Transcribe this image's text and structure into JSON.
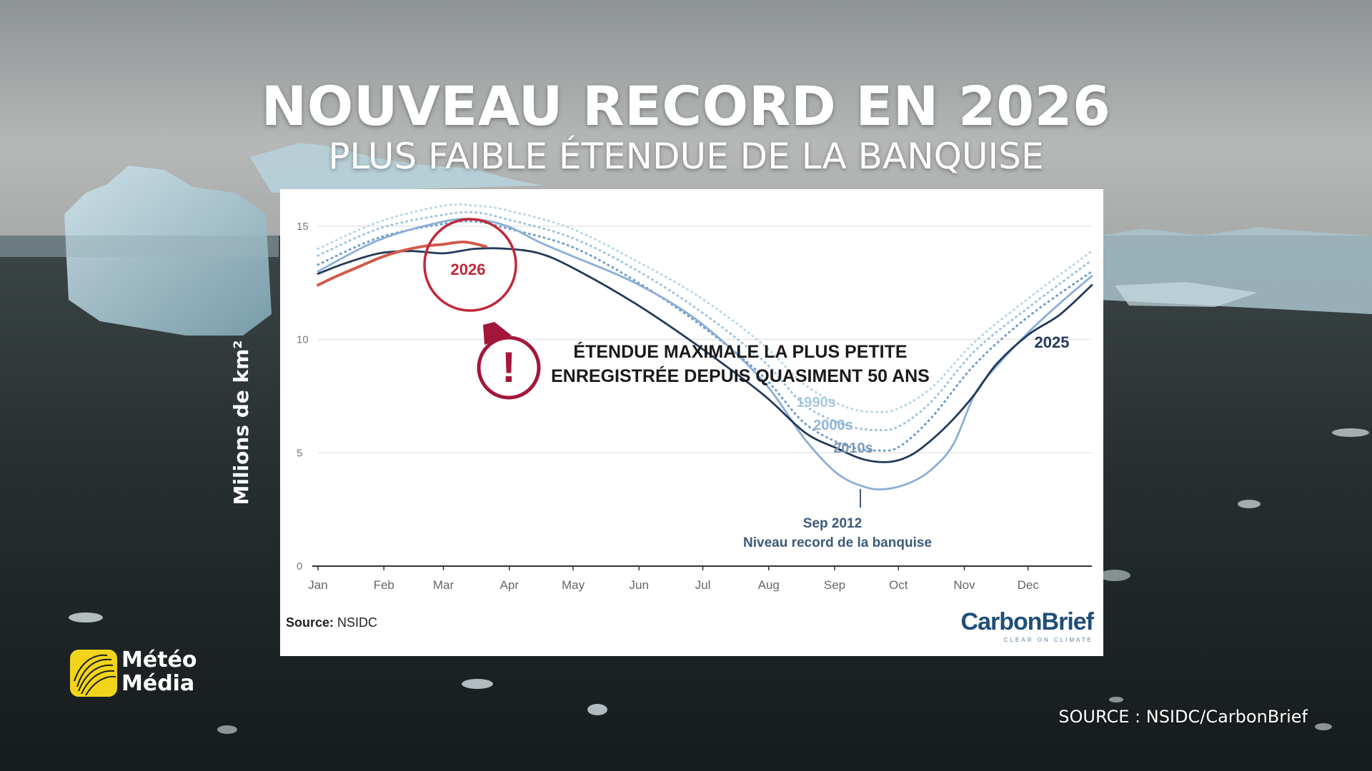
{
  "header": {
    "title": "NOUVEAU RECORD EN 2026",
    "subtitle": "PLUS FAIBLE ÉTENDUE DE LA BANQUISE"
  },
  "chart_data": {
    "type": "line",
    "ylabel": "Milions de km²",
    "ylim": [
      0,
      16
    ],
    "yticks": [
      0,
      5,
      10,
      15
    ],
    "xticks": [
      "Jan",
      "Feb",
      "Mar",
      "Apr",
      "May",
      "Jun",
      "Jul",
      "Aug",
      "Sep",
      "Oct",
      "Nov",
      "Dec"
    ],
    "x_units": "day of year",
    "grid": true,
    "series": [
      {
        "name": "1990s",
        "style": "dotted",
        "color": "#b7d7ea",
        "x": [
          1,
          30,
          60,
          75,
          90,
          120,
          150,
          180,
          210,
          230,
          250,
          265,
          275,
          290,
          310,
          335,
          365
        ],
        "y": [
          14.0,
          15.2,
          15.9,
          15.9,
          15.7,
          14.9,
          13.5,
          11.9,
          9.8,
          8.0,
          7.0,
          6.8,
          7.0,
          7.9,
          9.9,
          11.8,
          13.9
        ]
      },
      {
        "name": "2000s",
        "style": "dotted",
        "color": "#9cc3df",
        "x": [
          1,
          30,
          60,
          75,
          90,
          120,
          150,
          180,
          210,
          230,
          250,
          265,
          275,
          290,
          310,
          335,
          365
        ],
        "y": [
          13.7,
          14.9,
          15.5,
          15.6,
          15.3,
          14.5,
          13.1,
          11.3,
          9.1,
          7.1,
          6.2,
          6.0,
          6.2,
          7.3,
          9.5,
          11.4,
          13.5
        ]
      },
      {
        "name": "2010s",
        "style": "dotted",
        "color": "#6f9bcb",
        "x": [
          1,
          30,
          60,
          75,
          90,
          120,
          150,
          180,
          210,
          230,
          250,
          265,
          275,
          290,
          310,
          335,
          365
        ],
        "y": [
          13.3,
          14.5,
          15.1,
          15.2,
          14.9,
          14.1,
          12.6,
          10.7,
          8.4,
          6.3,
          5.3,
          5.1,
          5.3,
          6.6,
          8.9,
          11.0,
          13.0
        ]
      },
      {
        "name": "Sep 2012",
        "style": "solid",
        "color": "#8aaed6",
        "x": [
          1,
          30,
          60,
          75,
          90,
          105,
          120,
          150,
          180,
          210,
          230,
          245,
          258,
          268,
          280,
          290,
          300,
          310,
          320,
          335,
          350,
          365
        ],
        "y": [
          13.0,
          14.4,
          15.2,
          15.3,
          15.0,
          14.3,
          13.7,
          12.5,
          10.8,
          8.2,
          5.6,
          4.1,
          3.5,
          3.4,
          3.7,
          4.3,
          5.4,
          7.6,
          8.8,
          10.3,
          11.6,
          12.8
        ]
      },
      {
        "name": "2025",
        "style": "solid",
        "color": "#23395b",
        "x": [
          1,
          15,
          30,
          45,
          60,
          75,
          90,
          105,
          120,
          150,
          180,
          210,
          230,
          245,
          258,
          270,
          280,
          290,
          300,
          310,
          320,
          335,
          350,
          365
        ],
        "y": [
          12.9,
          13.4,
          13.8,
          13.9,
          13.8,
          14.0,
          14.0,
          13.8,
          13.2,
          11.6,
          9.7,
          7.6,
          5.9,
          5.2,
          4.7,
          4.6,
          4.9,
          5.6,
          6.5,
          7.6,
          8.9,
          10.2,
          11.1,
          12.4
        ]
      },
      {
        "name": "2026",
        "style": "solid",
        "color": "#d25a4a",
        "x": [
          1,
          10,
          20,
          30,
          40,
          50,
          60,
          70,
          80
        ],
        "y": [
          12.4,
          12.8,
          13.2,
          13.6,
          13.9,
          14.1,
          14.2,
          14.3,
          14.1
        ]
      }
    ],
    "annotations": [
      {
        "text": "2026",
        "target": "2026 series maximum"
      },
      {
        "text": "ÉTENDUE MAXIMALE LA PLUS PETITE",
        "line": 1
      },
      {
        "text": "ENREGISTRÉE DEPUIS QUASIMENT 50 ANS",
        "line": 2
      },
      {
        "text": "Sep 2012",
        "line": 1
      },
      {
        "text": "Niveau record de la banquise",
        "line": 2
      }
    ],
    "source_note": {
      "label": "Source:",
      "value": "NSIDC"
    },
    "brand": "CarbonBrief",
    "brand_tagline": "CLEAR ON CLIMATE"
  },
  "logo": {
    "line1": "Météo",
    "line2": "Média"
  },
  "footer": {
    "source": "SOURCE : NSIDC/CarbonBrief"
  },
  "colors": {
    "alert": "#a3173a",
    "circle": "#c0283a",
    "axis": "#333333",
    "grid": "#e6e6e6"
  }
}
